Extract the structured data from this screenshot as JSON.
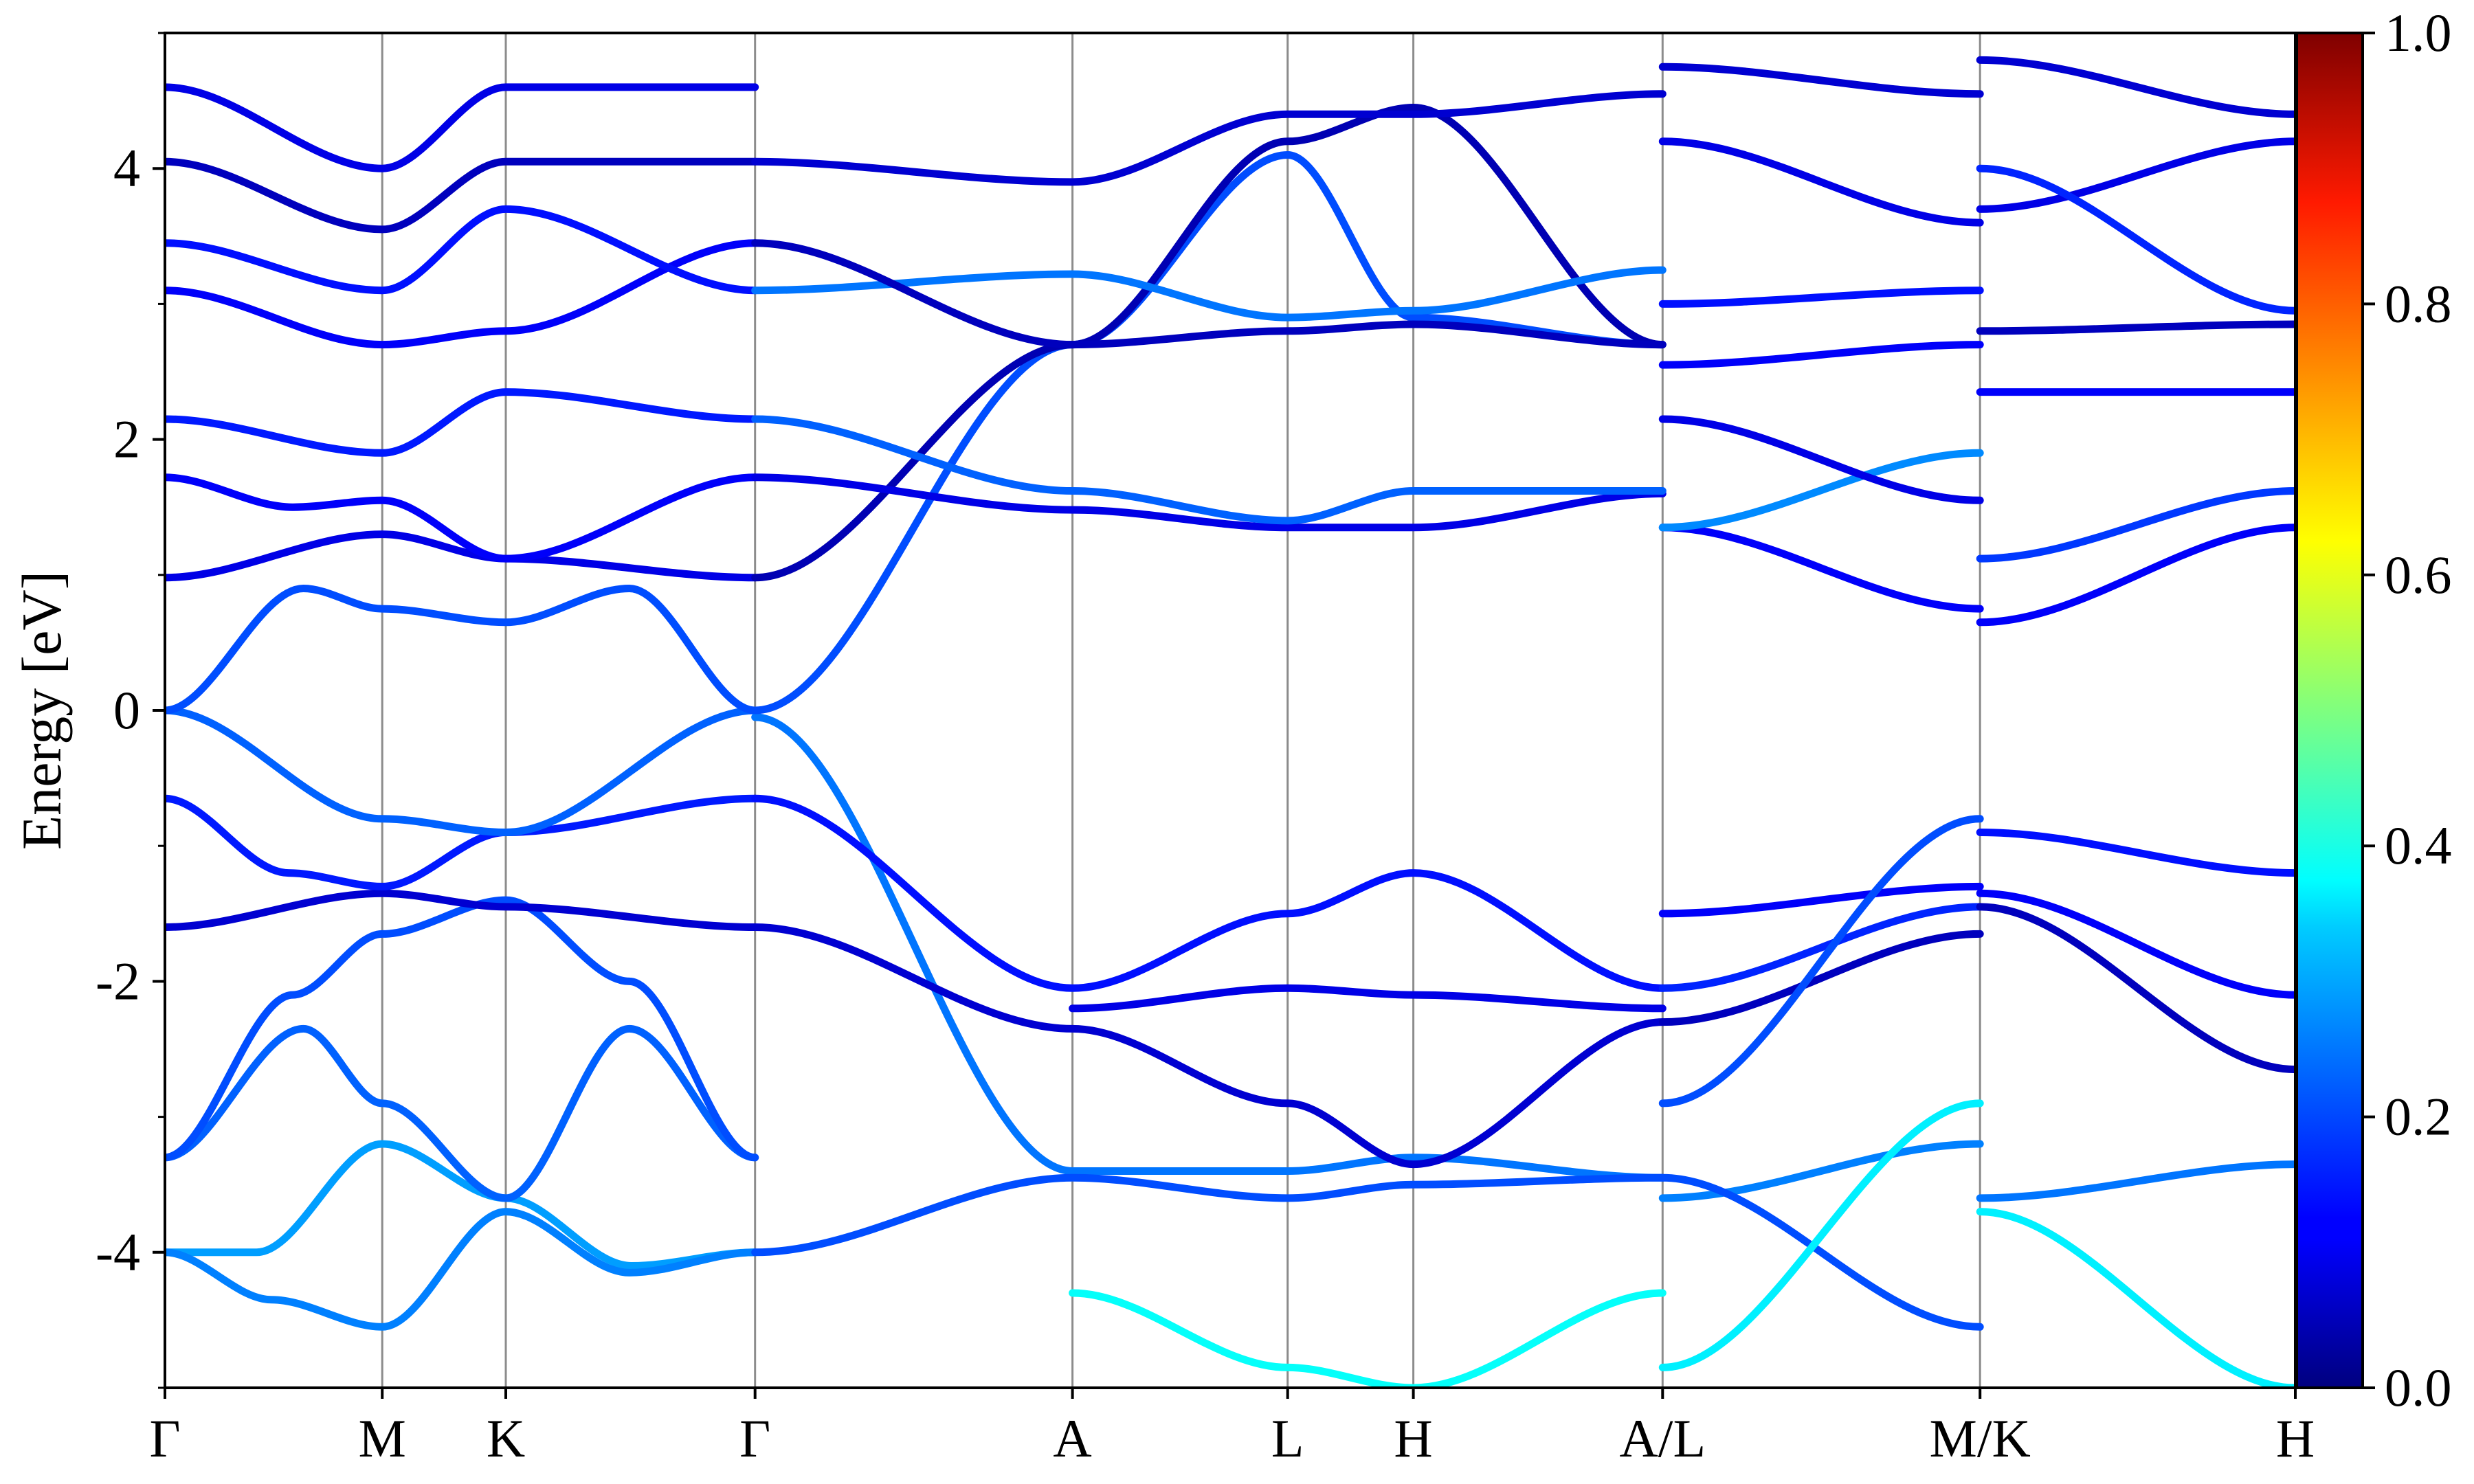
{
  "chart_data": {
    "type": "line",
    "title": "",
    "xlabel": "",
    "ylabel": "Energy [eV]",
    "ylim": [
      -5,
      5
    ],
    "yticks": [
      {
        "value": 4,
        "label": "4"
      },
      {
        "value": 2,
        "label": "2"
      },
      {
        "value": 0,
        "label": "0"
      },
      {
        "value": -2,
        "label": "-2"
      },
      {
        "value": -4,
        "label": "-4"
      }
    ],
    "xlim": [
      0,
      1
    ],
    "kpoints": [
      {
        "label": "Γ",
        "x": 0.0
      },
      {
        "label": "M",
        "x": 0.102
      },
      {
        "label": "K",
        "x": 0.16
      },
      {
        "label": "Γ",
        "x": 0.277
      },
      {
        "label": "A",
        "x": 0.426
      },
      {
        "label": "L",
        "x": 0.527
      },
      {
        "label": "H",
        "x": 0.586
      },
      {
        "label": "A/L",
        "x": 0.703
      },
      {
        "label": "M/K",
        "x": 0.852
      },
      {
        "label": "H",
        "x": 1.0
      }
    ],
    "grid": "vertical lines at high-symmetry points",
    "colorbar": {
      "colormap": "jet",
      "range": [
        0.0,
        1.0
      ],
      "ticks": [
        {
          "value": 0.0,
          "label": "0.0"
        },
        {
          "value": 0.2,
          "label": "0.2"
        },
        {
          "value": 0.4,
          "label": "0.4"
        },
        {
          "value": 0.6,
          "label": "0.6"
        },
        {
          "value": 0.8,
          "label": "0.8"
        },
        {
          "value": 1.0,
          "label": "1.0"
        }
      ]
    },
    "series": [
      {
        "x": [
          0.0,
          0.043,
          0.102,
          0.16,
          0.219,
          0.277
        ],
        "y": [
          -4.0,
          -4.0,
          -3.2,
          -3.6,
          -4.1,
          -4.0
        ],
        "c": 0.28
      },
      {
        "x": [
          0.0,
          0.05,
          0.102,
          0.16,
          0.218,
          0.277
        ],
        "y": [
          -4.0,
          -4.35,
          -4.55,
          -3.7,
          -4.15,
          -4.0
        ],
        "c": 0.25
      },
      {
        "x": [
          0.0,
          0.065,
          0.102,
          0.16,
          0.218,
          0.277
        ],
        "y": [
          -3.3,
          -2.35,
          -2.9,
          -3.6,
          -2.35,
          -3.3
        ],
        "c": 0.22
      },
      {
        "x": [
          0.0,
          0.06,
          0.102,
          0.16,
          0.218,
          0.277
        ],
        "y": [
          -3.3,
          -2.1,
          -1.65,
          -1.4,
          -2.0,
          -3.3
        ],
        "c": 0.2
      },
      {
        "x": [
          0.0,
          0.102,
          0.16,
          0.277
        ],
        "y": [
          -1.6,
          -1.35,
          -1.45,
          -1.6
        ],
        "c": 0.08
      },
      {
        "x": [
          0.0,
          0.058,
          0.102,
          0.16,
          0.277
        ],
        "y": [
          -0.65,
          -1.2,
          -1.3,
          -0.9,
          -0.65
        ],
        "c": 0.15
      },
      {
        "x": [
          0.0,
          0.102,
          0.16,
          0.277
        ],
        "y": [
          0.0,
          -0.8,
          -0.9,
          0.0
        ],
        "c": 0.22
      },
      {
        "x": [
          0.0,
          0.065,
          0.102,
          0.16,
          0.218,
          0.277
        ],
        "y": [
          0.0,
          0.9,
          0.75,
          0.65,
          0.9,
          0.0
        ],
        "c": 0.2
      },
      {
        "x": [
          0.0,
          0.102,
          0.16,
          0.277
        ],
        "y": [
          0.98,
          1.3,
          1.12,
          0.98
        ],
        "c": 0.1
      },
      {
        "x": [
          0.0,
          0.06,
          0.102,
          0.16,
          0.277
        ],
        "y": [
          1.72,
          1.5,
          1.55,
          1.12,
          1.72
        ],
        "c": 0.12
      },
      {
        "x": [
          0.0,
          0.102,
          0.16,
          0.277
        ],
        "y": [
          2.15,
          1.9,
          2.35,
          2.15
        ],
        "c": 0.15
      },
      {
        "x": [
          0.0,
          0.102,
          0.16,
          0.277
        ],
        "y": [
          3.1,
          2.7,
          2.8,
          3.45
        ],
        "c": 0.12
      },
      {
        "x": [
          0.0,
          0.102,
          0.16,
          0.277
        ],
        "y": [
          3.45,
          3.1,
          3.7,
          3.1
        ],
        "c": 0.14
      },
      {
        "x": [
          0.0,
          0.102,
          0.16,
          0.277
        ],
        "y": [
          4.05,
          3.55,
          4.05,
          4.05
        ],
        "c": 0.06
      },
      {
        "x": [
          0.0,
          0.102,
          0.16,
          0.277
        ],
        "y": [
          4.6,
          4.0,
          4.6,
          4.6
        ],
        "c": 0.1
      },
      {
        "x": [
          0.277,
          0.426,
          0.527,
          0.586,
          0.703
        ],
        "y": [
          -0.05,
          -3.4,
          -3.4,
          -3.3,
          -3.45
        ],
        "c": 0.24
      },
      {
        "x": [
          0.277,
          0.426,
          0.527,
          0.586,
          0.703
        ],
        "y": [
          -1.6,
          -2.35,
          -2.9,
          -3.35,
          -2.3
        ],
        "c": 0.08
      },
      {
        "x": [
          0.277,
          0.426,
          0.527,
          0.586,
          0.703
        ],
        "y": [
          -0.65,
          -2.05,
          -1.5,
          -1.2,
          -2.05
        ],
        "c": 0.14
      },
      {
        "x": [
          0.277,
          0.426,
          0.527,
          0.586,
          0.703
        ],
        "y": [
          -4.0,
          -3.45,
          -3.6,
          -3.5,
          -3.45
        ],
        "c": 0.2
      },
      {
        "x": [
          0.426,
          0.527,
          0.586,
          0.703
        ],
        "y": [
          -4.3,
          -4.85,
          -5.0,
          -4.3
        ],
        "c": 0.38
      },
      {
        "x": [
          0.426,
          0.527,
          0.586,
          0.703
        ],
        "y": [
          -2.2,
          -2.05,
          -2.1,
          -2.2
        ],
        "c": 0.1
      },
      {
        "x": [
          0.277,
          0.426,
          0.527,
          0.586,
          0.703
        ],
        "y": [
          0.0,
          2.7,
          4.1,
          2.9,
          2.7
        ],
        "c": 0.2
      },
      {
        "x": [
          0.277,
          0.426,
          0.527,
          0.586,
          0.703
        ],
        "y": [
          0.98,
          2.7,
          4.2,
          4.45,
          2.7
        ],
        "c": 0.05
      },
      {
        "x": [
          0.277,
          0.426,
          0.527,
          0.586,
          0.703
        ],
        "y": [
          1.72,
          1.48,
          1.35,
          1.35,
          1.6
        ],
        "c": 0.1
      },
      {
        "x": [
          0.277,
          0.426,
          0.527,
          0.586,
          0.703
        ],
        "y": [
          2.15,
          1.62,
          1.4,
          1.62,
          1.62
        ],
        "c": 0.22
      },
      {
        "x": [
          0.277,
          0.426,
          0.527,
          0.586,
          0.703
        ],
        "y": [
          3.1,
          3.22,
          2.9,
          2.95,
          3.25
        ],
        "c": 0.24
      },
      {
        "x": [
          0.277,
          0.426,
          0.527,
          0.586,
          0.703
        ],
        "y": [
          3.45,
          2.7,
          2.8,
          2.85,
          2.7
        ],
        "c": 0.06
      },
      {
        "x": [
          0.277,
          0.426,
          0.527,
          0.586,
          0.703
        ],
        "y": [
          4.05,
          3.9,
          4.4,
          4.4,
          4.55
        ],
        "c": 0.08
      },
      {
        "x": [
          0.703,
          0.852
        ],
        "y": [
          -1.5,
          -1.3
        ],
        "c": 0.12
      },
      {
        "x": [
          0.703,
          0.852
        ],
        "y": [
          -2.05,
          -1.45
        ],
        "c": 0.16
      },
      {
        "x": [
          0.703,
          0.852
        ],
        "y": [
          -2.3,
          -1.65
        ],
        "c": 0.06
      },
      {
        "x": [
          0.703,
          0.852
        ],
        "y": [
          -2.9,
          -0.8
        ],
        "c": 0.2
      },
      {
        "x": [
          0.703,
          0.852
        ],
        "y": [
          -3.6,
          -3.2
        ],
        "c": 0.25
      },
      {
        "x": [
          0.703,
          0.852
        ],
        "y": [
          -3.45,
          -4.55
        ],
        "c": 0.2
      },
      {
        "x": [
          0.703,
          0.852
        ],
        "y": [
          -4.85,
          -2.9
        ],
        "c": 0.36
      },
      {
        "x": [
          0.703,
          0.852
        ],
        "y": [
          1.35,
          0.75
        ],
        "c": 0.12
      },
      {
        "x": [
          0.703,
          0.852
        ],
        "y": [
          1.35,
          1.9
        ],
        "c": 0.26
      },
      {
        "x": [
          0.703,
          0.852
        ],
        "y": [
          2.15,
          1.55
        ],
        "c": 0.1
      },
      {
        "x": [
          0.703,
          0.852
        ],
        "y": [
          2.55,
          2.7
        ],
        "c": 0.12
      },
      {
        "x": [
          0.703,
          0.852
        ],
        "y": [
          3.0,
          3.1
        ],
        "c": 0.14
      },
      {
        "x": [
          0.703,
          0.852
        ],
        "y": [
          4.2,
          3.6
        ],
        "c": 0.1
      },
      {
        "x": [
          0.703,
          0.852
        ],
        "y": [
          4.75,
          4.55
        ],
        "c": 0.08
      },
      {
        "x": [
          0.852,
          1.0
        ],
        "y": [
          -0.9,
          -1.2
        ],
        "c": 0.14
      },
      {
        "x": [
          0.852,
          1.0
        ],
        "y": [
          -1.35,
          -2.1
        ],
        "c": 0.12
      },
      {
        "x": [
          0.852,
          1.0
        ],
        "y": [
          -1.45,
          -2.65
        ],
        "c": 0.06
      },
      {
        "x": [
          0.852,
          1.0
        ],
        "y": [
          -3.6,
          -3.35
        ],
        "c": 0.24
      },
      {
        "x": [
          0.852,
          1.0
        ],
        "y": [
          -3.7,
          -5.0
        ],
        "c": 0.36
      },
      {
        "x": [
          0.852,
          1.0
        ],
        "y": [
          0.65,
          1.35
        ],
        "c": 0.12
      },
      {
        "x": [
          0.852,
          1.0
        ],
        "y": [
          1.12,
          1.62
        ],
        "c": 0.18
      },
      {
        "x": [
          0.852,
          1.0
        ],
        "y": [
          2.35,
          2.35
        ],
        "c": 0.12
      },
      {
        "x": [
          0.852,
          1.0
        ],
        "y": [
          2.8,
          2.85
        ],
        "c": 0.06
      },
      {
        "x": [
          0.852,
          1.0
        ],
        "y": [
          3.7,
          4.2
        ],
        "c": 0.1
      },
      {
        "x": [
          0.852,
          1.0
        ],
        "y": [
          4.0,
          2.95
        ],
        "c": 0.16
      },
      {
        "x": [
          0.852,
          1.0
        ],
        "y": [
          4.8,
          4.4
        ],
        "c": 0.08
      }
    ]
  }
}
